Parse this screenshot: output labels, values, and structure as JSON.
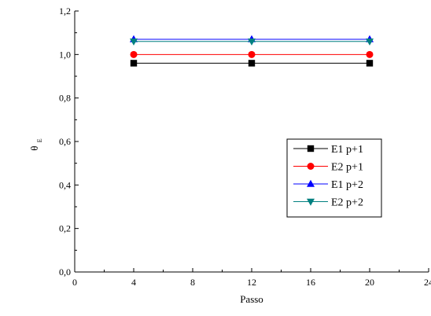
{
  "chart_data": {
    "type": "line",
    "xlabel": "Passo",
    "ylabel": "θ",
    "ylabel_subscript": "E",
    "xlim": [
      0,
      24
    ],
    "ylim": [
      0.0,
      1.2
    ],
    "x_ticks": [
      "0",
      "4",
      "8",
      "12",
      "16",
      "20",
      "24"
    ],
    "y_ticks": [
      "0,0",
      "0,2",
      "0,4",
      "0,6",
      "0,8",
      "1,0",
      "1,2"
    ],
    "x": [
      4,
      12,
      20
    ],
    "series": [
      {
        "name": "E1 p+1",
        "values": [
          0.96,
          0.96,
          0.96
        ],
        "color": "#000000",
        "marker": "square"
      },
      {
        "name": "E2 p+1",
        "values": [
          1.0,
          1.0,
          1.0
        ],
        "color": "#ff0000",
        "marker": "circle"
      },
      {
        "name": "E1 p+2",
        "values": [
          1.07,
          1.07,
          1.07
        ],
        "color": "#0000ff",
        "marker": "triangle-up"
      },
      {
        "name": "E2 p+2",
        "values": [
          1.06,
          1.06,
          1.06
        ],
        "color": "#008080",
        "marker": "triangle-down"
      }
    ],
    "legend_position": "center-right",
    "grid": false
  }
}
